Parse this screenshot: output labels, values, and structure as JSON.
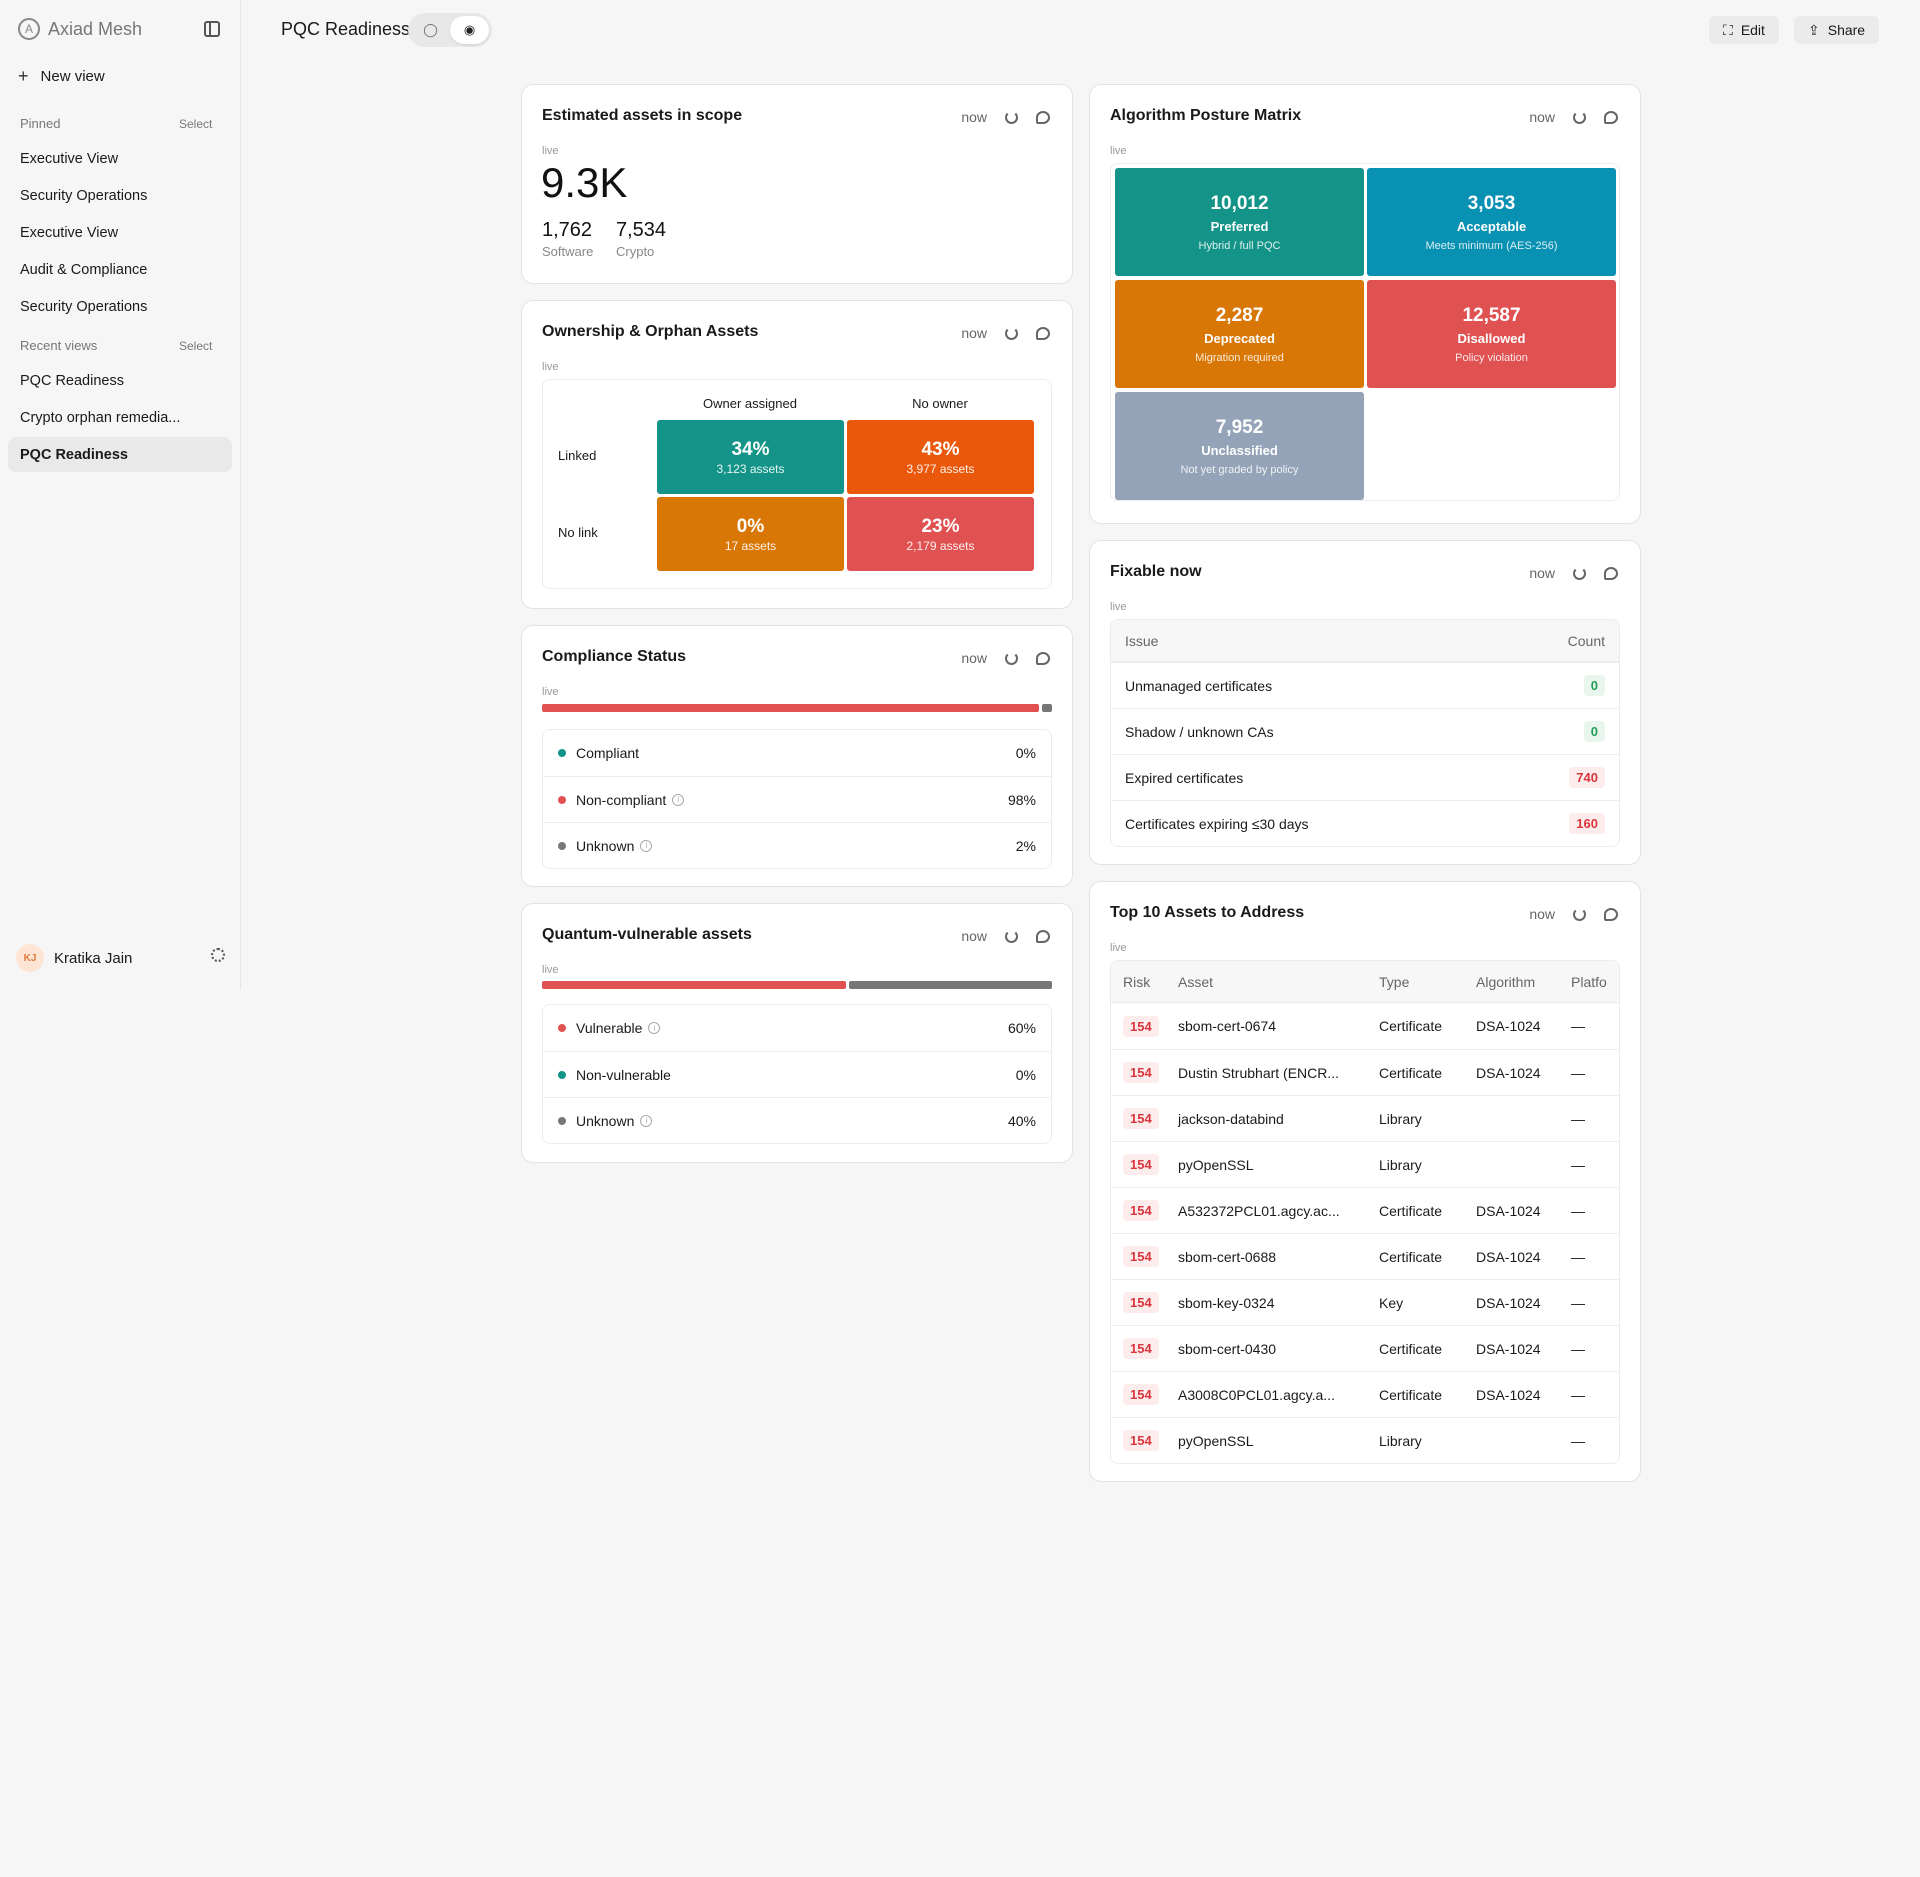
{
  "app": {
    "name": "Axiad Mesh"
  },
  "sidebar": {
    "new_view": "New view",
    "pinned_label": "Pinned",
    "select_label": "Select",
    "pinned": [
      "Executive View",
      "Security Operations",
      "Executive View",
      "Audit & Compliance",
      "Security Operations"
    ],
    "recent_label": "Recent views",
    "recent": [
      "PQC Readiness",
      "Crypto orphan remedia...",
      "PQC Readiness"
    ],
    "user": {
      "initials": "KJ",
      "name": "Kratika Jain"
    }
  },
  "header": {
    "title": "PQC Readiness",
    "edit": "Edit",
    "share": "Share"
  },
  "card_meta": {
    "now": "now",
    "live": "live"
  },
  "estimated": {
    "title": "Estimated assets in scope",
    "total": "9.3K",
    "stats": [
      {
        "value": "1,762",
        "label": "Software"
      },
      {
        "value": "7,534",
        "label": "Crypto"
      }
    ]
  },
  "ownership": {
    "title": "Ownership & Orphan Assets",
    "columns": [
      "Owner assigned",
      "No owner"
    ],
    "rows": [
      "Linked",
      "No link"
    ],
    "cells": [
      {
        "pct": "34%",
        "assets": "3,123 assets",
        "color": "#149488"
      },
      {
        "pct": "43%",
        "assets": "3,977 assets",
        "color": "#ea580c"
      },
      {
        "pct": "0%",
        "assets": "17 assets",
        "color": "#d97706"
      },
      {
        "pct": "23%",
        "assets": "2,179 assets",
        "color": "#e05252"
      }
    ]
  },
  "compliance": {
    "title": "Compliance Status",
    "items": [
      {
        "label": "Compliant",
        "value": "0%",
        "color": "#149488",
        "info": false
      },
      {
        "label": "Non-compliant",
        "value": "98%",
        "color": "#e05252",
        "info": true
      },
      {
        "label": "Unknown",
        "value": "2%",
        "color": "#777777",
        "info": true
      }
    ],
    "bar": [
      {
        "pct": 98,
        "color": "#e05252"
      },
      {
        "pct": 2,
        "color": "#777777"
      }
    ]
  },
  "quantum": {
    "title": "Quantum-vulnerable assets",
    "items": [
      {
        "label": "Vulnerable",
        "value": "60%",
        "color": "#e05252",
        "info": true
      },
      {
        "label": "Non-vulnerable",
        "value": "0%",
        "color": "#149488",
        "info": false
      },
      {
        "label": "Unknown",
        "value": "40%",
        "color": "#777777",
        "info": true
      }
    ],
    "bar": [
      {
        "pct": 60,
        "color": "#e05252"
      },
      {
        "pct": 40,
        "color": "#777777"
      }
    ]
  },
  "posture": {
    "title": "Algorithm Posture Matrix",
    "cells": [
      {
        "value": "10,012",
        "name": "Preferred",
        "desc": "Hybrid / full PQC",
        "color": "#149488"
      },
      {
        "value": "3,053",
        "name": "Acceptable",
        "desc": "Meets minimum (AES-256)",
        "color": "#0891b2"
      },
      {
        "value": "2,287",
        "name": "Deprecated",
        "desc": "Migration required",
        "color": "#d97706"
      },
      {
        "value": "12,587",
        "name": "Disallowed",
        "desc": "Policy violation",
        "color": "#e05252"
      },
      {
        "value": "7,952",
        "name": "Unclassified",
        "desc": "Not yet graded by policy",
        "color": "#94a3b8"
      }
    ]
  },
  "fixable": {
    "title": "Fixable now",
    "headers": [
      "Issue",
      "Count"
    ],
    "rows": [
      {
        "issue": "Unmanaged certificates",
        "count": "0",
        "tone": "green"
      },
      {
        "issue": "Shadow / unknown CAs",
        "count": "0",
        "tone": "green"
      },
      {
        "issue": "Expired certificates",
        "count": "740",
        "tone": "red"
      },
      {
        "issue": "Certificates expiring ≤30 days",
        "count": "160",
        "tone": "red"
      }
    ]
  },
  "top10": {
    "title": "Top 10 Assets to Address",
    "headers": [
      "Risk",
      "Asset",
      "Type",
      "Algorithm",
      "Platfo"
    ],
    "rows": [
      {
        "risk": "154",
        "asset": "sbom-cert-0674",
        "type": "Certificate",
        "alg": "DSA-1024",
        "plat": "—"
      },
      {
        "risk": "154",
        "asset": "Dustin Strubhart (ENCR...",
        "type": "Certificate",
        "alg": "DSA-1024",
        "plat": "—"
      },
      {
        "risk": "154",
        "asset": "jackson-databind",
        "type": "Library",
        "alg": "",
        "plat": "—"
      },
      {
        "risk": "154",
        "asset": "pyOpenSSL",
        "type": "Library",
        "alg": "",
        "plat": "—"
      },
      {
        "risk": "154",
        "asset": "A532372PCL01.agcy.ac...",
        "type": "Certificate",
        "alg": "DSA-1024",
        "plat": "—"
      },
      {
        "risk": "154",
        "asset": "sbom-cert-0688",
        "type": "Certificate",
        "alg": "DSA-1024",
        "plat": "—"
      },
      {
        "risk": "154",
        "asset": "sbom-key-0324",
        "type": "Key",
        "alg": "DSA-1024",
        "plat": "—"
      },
      {
        "risk": "154",
        "asset": "sbom-cert-0430",
        "type": "Certificate",
        "alg": "DSA-1024",
        "plat": "—"
      },
      {
        "risk": "154",
        "asset": "A3008C0PCL01.agcy.a...",
        "type": "Certificate",
        "alg": "DSA-1024",
        "plat": "—"
      },
      {
        "risk": "154",
        "asset": "pyOpenSSL",
        "type": "Library",
        "alg": "",
        "plat": "—"
      }
    ]
  }
}
